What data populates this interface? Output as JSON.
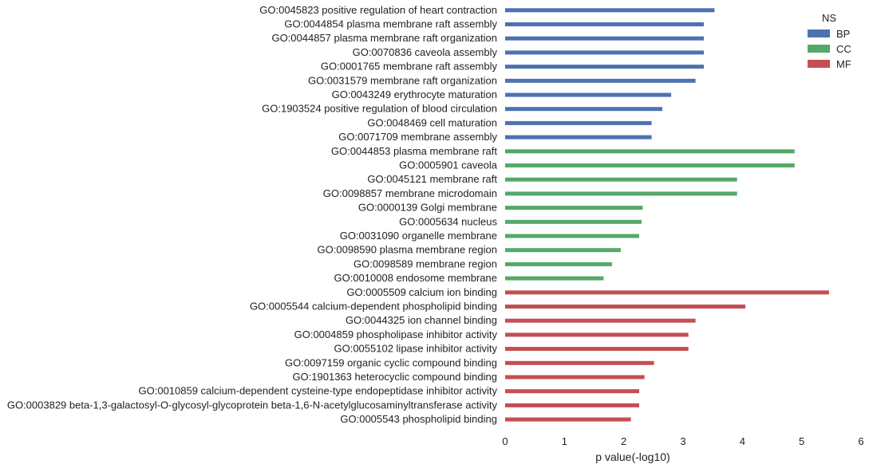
{
  "chart_data": {
    "type": "bar",
    "orientation": "horizontal",
    "xlabel": "p value(-log10)",
    "xlim": [
      0,
      6
    ],
    "xticks": [
      0,
      1,
      2,
      3,
      4,
      5,
      6
    ],
    "grid": false,
    "legend": {
      "title": "NS",
      "placement": "top-right",
      "entries": [
        {
          "name": "BP",
          "color": "#4c72b0"
        },
        {
          "name": "CC",
          "color": "#55a868"
        },
        {
          "name": "MF",
          "color": "#c44e52"
        }
      ]
    },
    "bars": [
      {
        "label": "GO:0045823 positive regulation of heart contraction",
        "ns": "BP",
        "value": 3.53
      },
      {
        "label": "GO:0044854 plasma membrane raft assembly",
        "ns": "BP",
        "value": 3.35
      },
      {
        "label": "GO:0044857 plasma membrane raft organization",
        "ns": "BP",
        "value": 3.35
      },
      {
        "label": "GO:0070836 caveola assembly",
        "ns": "BP",
        "value": 3.35
      },
      {
        "label": "GO:0001765 membrane raft assembly",
        "ns": "BP",
        "value": 3.35
      },
      {
        "label": "GO:0031579 membrane raft organization",
        "ns": "BP",
        "value": 3.21
      },
      {
        "label": "GO:0043249 erythrocyte maturation",
        "ns": "BP",
        "value": 2.8
      },
      {
        "label": "GO:1903524 positive regulation of blood circulation",
        "ns": "BP",
        "value": 2.65
      },
      {
        "label": "GO:0048469 cell maturation",
        "ns": "BP",
        "value": 2.47
      },
      {
        "label": "GO:0071709 membrane assembly",
        "ns": "BP",
        "value": 2.47
      },
      {
        "label": "GO:0044853 plasma membrane raft",
        "ns": "CC",
        "value": 4.88
      },
      {
        "label": "GO:0005901 caveola",
        "ns": "CC",
        "value": 4.88
      },
      {
        "label": "GO:0045121 membrane raft",
        "ns": "CC",
        "value": 3.91
      },
      {
        "label": "GO:0098857 membrane microdomain",
        "ns": "CC",
        "value": 3.91
      },
      {
        "label": "GO:0000139 Golgi membrane",
        "ns": "CC",
        "value": 2.32
      },
      {
        "label": "GO:0005634 nucleus",
        "ns": "CC",
        "value": 2.3
      },
      {
        "label": "GO:0031090 organelle membrane",
        "ns": "CC",
        "value": 2.26
      },
      {
        "label": "GO:0098590 plasma membrane region",
        "ns": "CC",
        "value": 1.95
      },
      {
        "label": "GO:0098589 membrane region",
        "ns": "CC",
        "value": 1.8
      },
      {
        "label": "GO:0010008 endosome membrane",
        "ns": "CC",
        "value": 1.66
      },
      {
        "label": "GO:0005509 calcium ion binding",
        "ns": "MF",
        "value": 5.46
      },
      {
        "label": "GO:0005544 calcium-dependent phospholipid binding",
        "ns": "MF",
        "value": 4.05
      },
      {
        "label": "GO:0044325 ion channel binding",
        "ns": "MF",
        "value": 3.21
      },
      {
        "label": "GO:0004859 phospholipase inhibitor activity",
        "ns": "MF",
        "value": 3.09
      },
      {
        "label": "GO:0055102 lipase inhibitor activity",
        "ns": "MF",
        "value": 3.09
      },
      {
        "label": "GO:0097159 organic cyclic compound binding",
        "ns": "MF",
        "value": 2.51
      },
      {
        "label": "GO:1901363 heterocyclic compound binding",
        "ns": "MF",
        "value": 2.35
      },
      {
        "label": "GO:0010859 calcium-dependent cysteine-type endopeptidase inhibitor activity",
        "ns": "MF",
        "value": 2.26
      },
      {
        "label": "GO:0003829 beta-1,3-galactosyl-O-glycosyl-glycoprotein beta-1,6-N-acetylglucosaminyltransferase activity",
        "ns": "MF",
        "value": 2.26
      },
      {
        "label": "GO:0005543 phospholipid binding",
        "ns": "MF",
        "value": 2.12
      }
    ]
  }
}
